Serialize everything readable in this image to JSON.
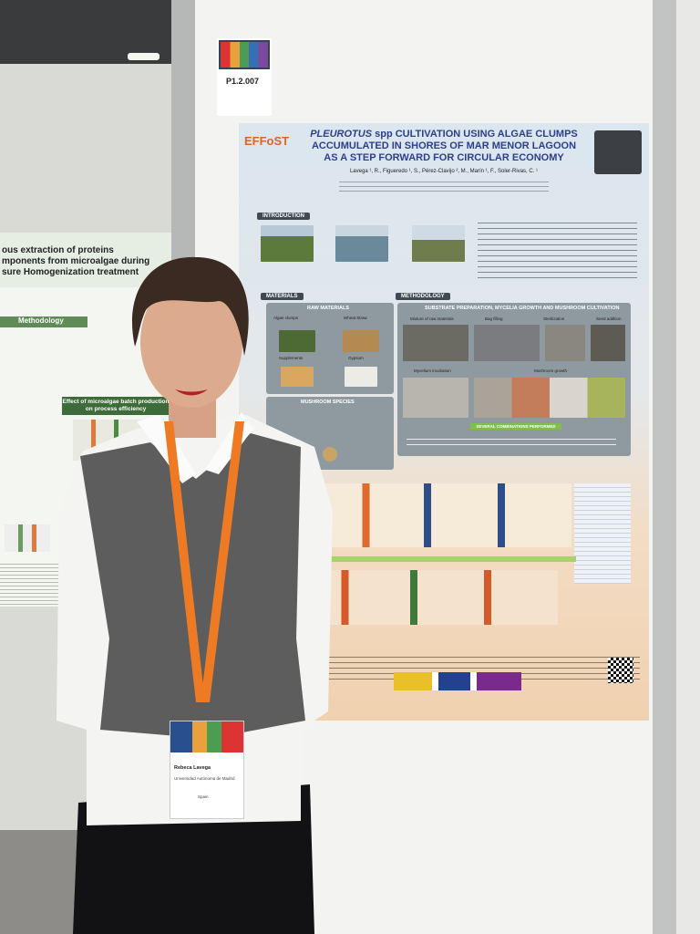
{
  "board_label": {
    "code": "P1.2.007"
  },
  "poster": {
    "logo": "EFFoST",
    "title_italic": "PLEUROTUS",
    "title": [
      "spp CULTIVATION USING ALGAE CLUMPS",
      "ACCUMULATED IN SHORES OF MAR MENOR LAGOON",
      "AS A STEP FORWARD FOR CIRCULAR ECONOMY"
    ],
    "authors": "Lavega ¹, R., Figueredo ¹, S., Pérez-Clavijo ², M., Marín ¹, F., Soler-Rivas, C. ¹",
    "sections": {
      "introduction": "INTRODUCTION",
      "materials": "MATERIALS",
      "raw_materials": "RAW MATERIALS",
      "methodology": "METHODOLOGY",
      "substrate": "SUBSTRATE PREPARATION, MYCELIA GROWTH AND MUSHROOM CULTIVATION",
      "mushroom_species": "MUSHROOM SPECIES",
      "combinations": "SEVERAL COMBINATIONS PERFORMED"
    },
    "raw_items": [
      "Algae clumps",
      "Wheat Straw",
      "Supplements",
      "Gypsum"
    ],
    "method_steps": [
      "Mixture of raw materials",
      "Bag filling",
      "Sterilization",
      "Seed addition",
      "Mycelium incubation",
      "Mushroom growth"
    ]
  },
  "left_poster": {
    "title": [
      "ous extraction of proteins",
      "mponents from microalgae during",
      "sure Homogenization treatment"
    ],
    "methodology": "Methodology",
    "effect": "Effect of microalgae batch production on process efficiency"
  },
  "badge": {
    "name": "Rebeca Lavega",
    "institution": "Universidad Autónoma de Madrid",
    "country": "Spain"
  }
}
